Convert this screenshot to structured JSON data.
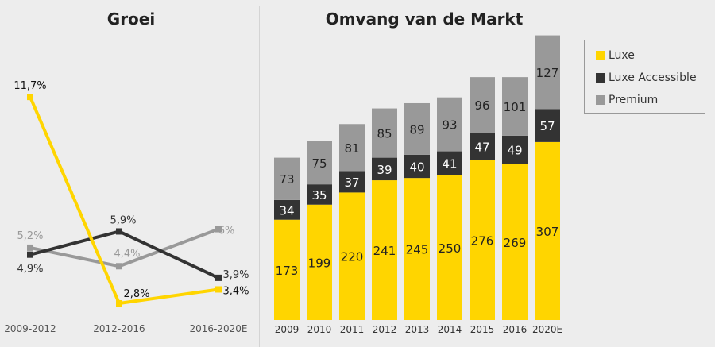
{
  "titles": {
    "left": "Groei",
    "right": "Omvang van de Markt"
  },
  "colors": {
    "Luxe": "#ffd500",
    "Luxe Accessible": "#333333",
    "Premium": "#999999"
  },
  "chart_data": [
    {
      "type": "line",
      "title": "Groei",
      "categories": [
        "2009-2012",
        "2012-2016",
        "2016-2020E"
      ],
      "series": [
        {
          "name": "Luxe",
          "values": [
            11.7,
            2.8,
            3.4
          ],
          "labels": [
            "11,7%",
            "2,8%",
            "3,4%"
          ]
        },
        {
          "name": "Luxe Accessible",
          "values": [
            4.9,
            5.9,
            3.9
          ],
          "labels": [
            "4,9%",
            "5,9%",
            "3,9%"
          ]
        },
        {
          "name": "Premium",
          "values": [
            5.2,
            4.4,
            6
          ],
          "labels": [
            "5,2%",
            "4,4%",
            "6%"
          ]
        }
      ],
      "unit": "%",
      "grid": false
    },
    {
      "type": "bar",
      "stacked": true,
      "title": "Omvang van de Markt",
      "categories": [
        "2009",
        "2010",
        "2011",
        "2012",
        "2013",
        "2014",
        "2015",
        "2016",
        "2020E"
      ],
      "series": [
        {
          "name": "Luxe",
          "values": [
            173,
            199,
            220,
            241,
            245,
            250,
            276,
            269,
            307
          ]
        },
        {
          "name": "Luxe Accessible",
          "values": [
            34,
            35,
            37,
            39,
            40,
            41,
            47,
            49,
            57
          ]
        },
        {
          "name": "Premium",
          "values": [
            73,
            75,
            81,
            85,
            89,
            93,
            96,
            101,
            127
          ]
        }
      ],
      "legend": "top-right",
      "grid": false
    }
  ],
  "legend": [
    "Luxe",
    "Luxe Accessible",
    "Premium"
  ]
}
